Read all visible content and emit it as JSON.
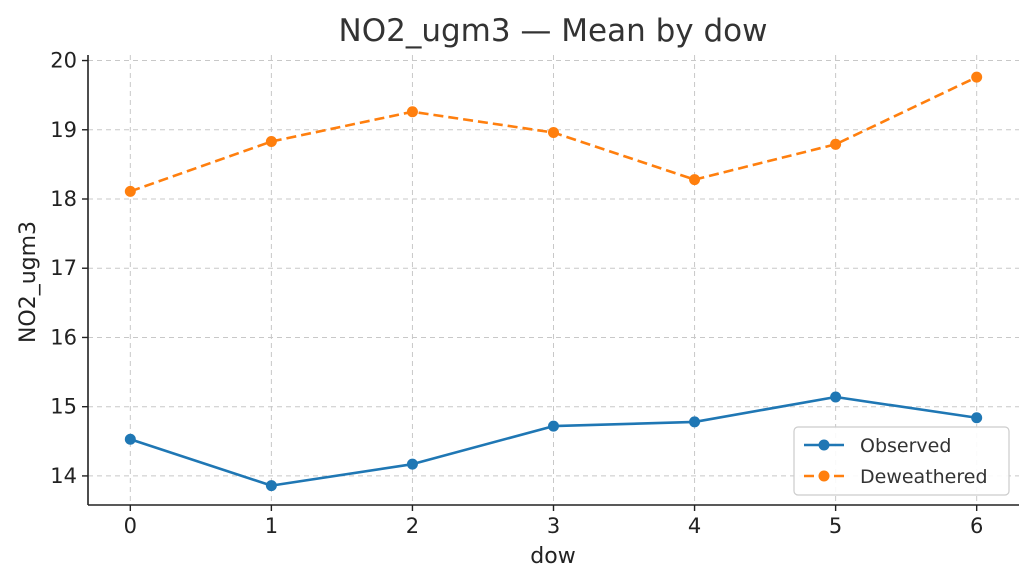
{
  "chart_data": {
    "type": "line",
    "title": "NO2_ugm3 — Mean by dow",
    "xlabel": "dow",
    "ylabel": "NO2_ugm3",
    "x": [
      0,
      1,
      2,
      3,
      4,
      5,
      6
    ],
    "xlim": [
      -0.3,
      6.3
    ],
    "ylim": [
      13.58,
      20.08
    ],
    "yticks": [
      14,
      15,
      16,
      17,
      18,
      19,
      20
    ],
    "grid": true,
    "legend_position": "lower-right",
    "series": [
      {
        "name": "Observed",
        "color": "#1f77b4",
        "dash": "solid",
        "marker": "circle",
        "values": [
          14.53,
          13.86,
          14.17,
          14.72,
          14.78,
          15.14,
          14.84
        ]
      },
      {
        "name": "Deweathered",
        "color": "#ff7f0e",
        "dash": "dashed",
        "marker": "circle",
        "values": [
          18.11,
          18.83,
          19.26,
          18.96,
          18.28,
          18.79,
          19.76
        ]
      }
    ]
  }
}
